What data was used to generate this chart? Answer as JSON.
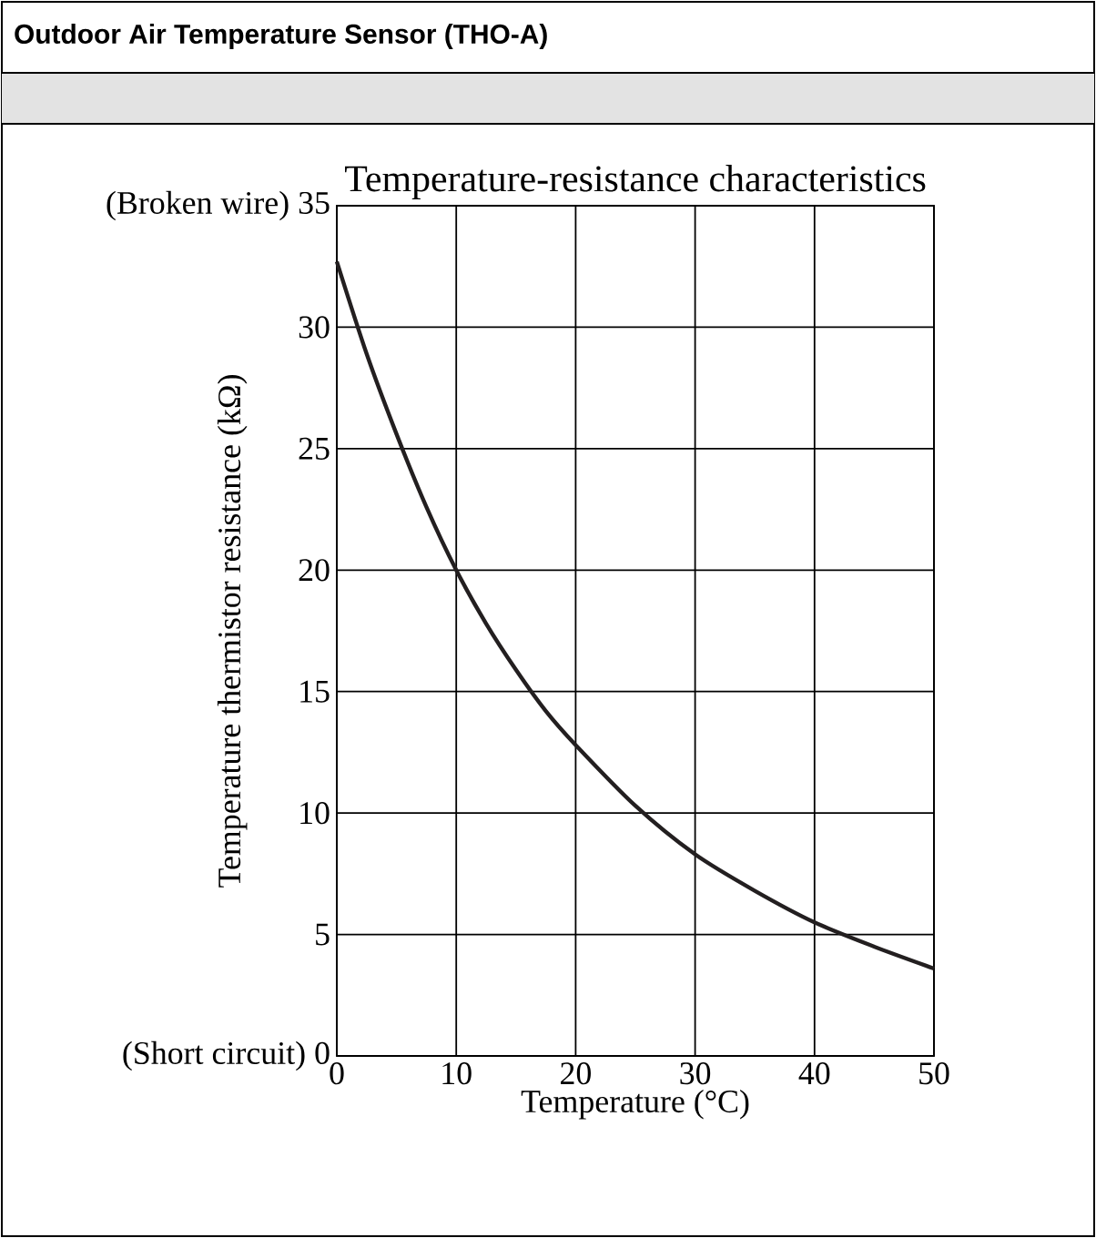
{
  "chart_data": {
    "type": "line",
    "title": "Temperature-resistance characteristics",
    "xlabel": "Temperature (°C)",
    "ylabel": "Temperature thermistor resistance (kΩ)",
    "annotations": [
      "Outdoor Air Temperature Sensor (THO-A)"
    ],
    "x": [
      0,
      2.5,
      5,
      7.5,
      10,
      12.5,
      15,
      17.5,
      20,
      25,
      30,
      35,
      40,
      45,
      50
    ],
    "series": [
      {
        "color": "#231f20",
        "values": [
          32.7,
          28.9,
          25.6,
          22.6,
          20.0,
          17.8,
          15.9,
          14.2,
          12.8,
          10.3,
          8.3,
          6.8,
          5.5,
          4.5,
          3.6
        ]
      }
    ],
    "xlim": [
      0,
      50
    ],
    "ylim": [
      0,
      35
    ],
    "xticks": [
      0,
      10,
      20,
      30,
      40,
      50
    ],
    "yticks": [
      {
        "value": 0,
        "label": "(Short circuit) 0"
      },
      5,
      10,
      15,
      20,
      25,
      30,
      {
        "value": 35,
        "label": "(Broken wire) 35"
      }
    ],
    "grid": true,
    "marker": "none",
    "line_style": "solid"
  }
}
